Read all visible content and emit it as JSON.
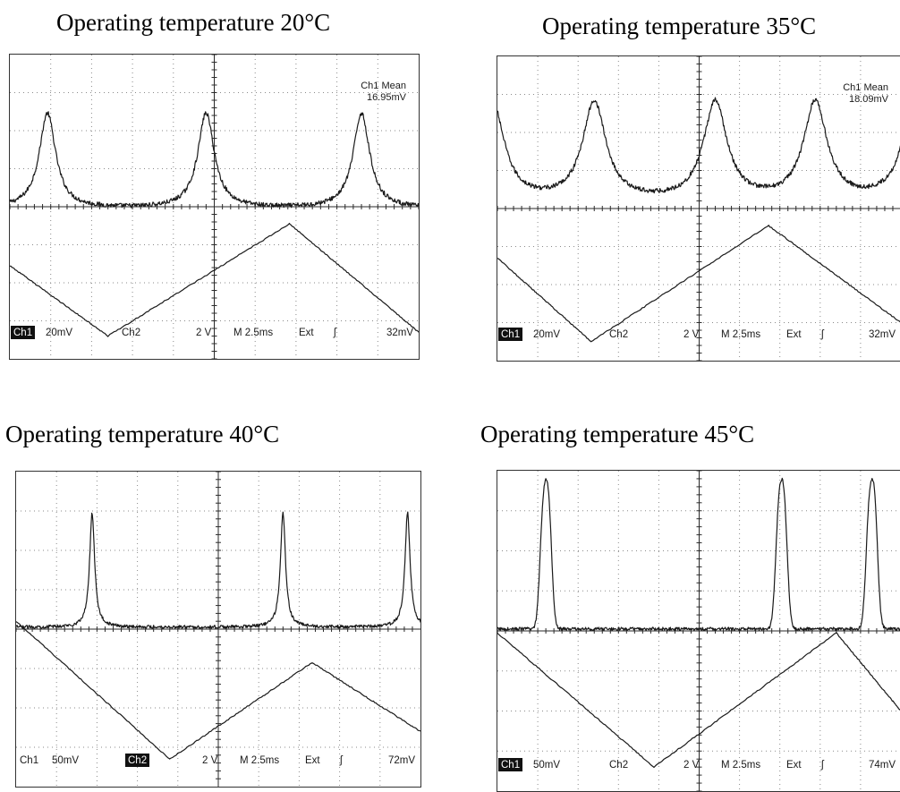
{
  "chart_data": [
    {
      "type": "line",
      "title": "Operating temperature 20°C",
      "x": {
        "unit": "ms",
        "range": [
          0,
          25
        ],
        "divisions": 10,
        "per_division": "2.5ms"
      },
      "grid": true,
      "series": [
        {
          "name": "Ch1",
          "shape": "peaks",
          "peak_positions_ms": [
            2.3,
            12.0,
            21.5
          ],
          "peak_width_ms": 0.9,
          "baseline_div": -0.05,
          "peak_height_div": 2.5,
          "noise_div": 0.06
        },
        {
          "name": "Ch2",
          "shape": "triangle",
          "vertices_ms": [
            [
              0,
              -1.55
            ],
            [
              6.0,
              -3.4
            ],
            [
              17.1,
              -0.45
            ],
            [
              25,
              -3.3
            ]
          ]
        }
      ],
      "readout": {
        "line1": "Ch1 Mean",
        "line2": "16.95mV"
      },
      "status": {
        "ch1": "Ch1",
        "ch1_scale": "20mV",
        "ch2": "Ch2",
        "ch2_scale": "2 V",
        "timebase": "M 2.5ms",
        "trigger_source": "Ext",
        "trigger_level": "32mV"
      },
      "ch1_label_highlighted": true,
      "ch2_label_highlighted": false
    },
    {
      "type": "line",
      "title": "Operating temperature 35°C",
      "x": {
        "unit": "ms",
        "range": [
          0,
          25
        ],
        "divisions": 10,
        "per_division": "2.5ms"
      },
      "grid": true,
      "series": [
        {
          "name": "Ch1",
          "shape": "peaks",
          "peak_positions_ms": [
            -0.3,
            6.0,
            13.5,
            19.7,
            25.8
          ],
          "peak_width_ms": 1.3,
          "baseline_div": 0.15,
          "peak_height_div": 2.6,
          "noise_div": 0.06
        },
        {
          "name": "Ch2",
          "shape": "triangle",
          "vertices_ms": [
            [
              0,
              -1.3
            ],
            [
              5.8,
              -3.5
            ],
            [
              16.8,
              -0.45
            ],
            [
              25,
              -3.0
            ]
          ]
        }
      ],
      "readout": {
        "line1": "Ch1 Mean",
        "line2": "18.09mV"
      },
      "status": {
        "ch1": "Ch1",
        "ch1_scale": "20mV",
        "ch2": "Ch2",
        "ch2_scale": "2 V",
        "timebase": "M 2.5ms",
        "trigger_source": "Ext",
        "trigger_level": "32mV"
      },
      "ch1_label_highlighted": true,
      "ch2_label_highlighted": false
    },
    {
      "type": "line",
      "title": "Operating temperature 40°C",
      "x": {
        "unit": "ms",
        "range": [
          0,
          25
        ],
        "divisions": 10,
        "per_division": "2.5ms"
      },
      "grid": true,
      "series": [
        {
          "name": "Ch1",
          "shape": "peaks",
          "peak_positions_ms": [
            4.7,
            16.5,
            24.2
          ],
          "peak_width_ms": 0.28,
          "baseline_div": 0.05,
          "peak_height_div": 2.9,
          "noise_div": 0.04
        },
        {
          "name": "Ch2",
          "shape": "triangle",
          "vertices_ms": [
            [
              0,
              0.2
            ],
            [
              9.5,
              -3.3
            ],
            [
              18.3,
              -0.85
            ],
            [
              25,
              -2.6
            ]
          ]
        }
      ],
      "readout": {
        "line1": "",
        "line2": ""
      },
      "status": {
        "ch1": "Ch1",
        "ch1_scale": "50mV",
        "ch2": "Ch2",
        "ch2_scale": "2 V",
        "timebase": "M 2.5ms",
        "trigger_source": "Ext",
        "trigger_level": "72mV"
      },
      "ch1_label_highlighted": false,
      "ch2_label_highlighted": true
    },
    {
      "type": "line",
      "title": "Operating temperature 45°C",
      "x": {
        "unit": "ms",
        "range": [
          0,
          25
        ],
        "divisions": 10,
        "per_division": "2.5ms"
      },
      "grid": true,
      "series": [
        {
          "name": "Ch1",
          "shape": "double-peaks",
          "peak_positions_ms": [
            3.0,
            17.6,
            23.2
          ],
          "peak_width_ms": 0.28,
          "peak_split_ms": 0.35,
          "baseline_div": 0.05,
          "peak_height_div": 2.9,
          "noise_div": 0.04
        },
        {
          "name": "Ch2",
          "shape": "triangle",
          "vertices_ms": [
            [
              0,
              -0.05
            ],
            [
              9.7,
              -3.4
            ],
            [
              21.0,
              -0.05
            ],
            [
              25,
              -2.0
            ]
          ]
        }
      ],
      "readout": {
        "line1": "",
        "line2": ""
      },
      "status": {
        "ch1": "Ch1",
        "ch1_scale": "50mV",
        "ch2": "Ch2",
        "ch2_scale": "2 V",
        "timebase": "M 2.5ms",
        "trigger_source": "Ext",
        "trigger_level": "74mV"
      },
      "ch1_label_highlighted": true,
      "ch2_label_highlighted": false
    }
  ],
  "colors": {
    "trace": "#1a1a1a",
    "grid": "#8a8a8a",
    "axis": "#2a2a2a",
    "frame": "#333333",
    "highlight_bg": "#111111",
    "highlight_fg": "#ffffff"
  }
}
